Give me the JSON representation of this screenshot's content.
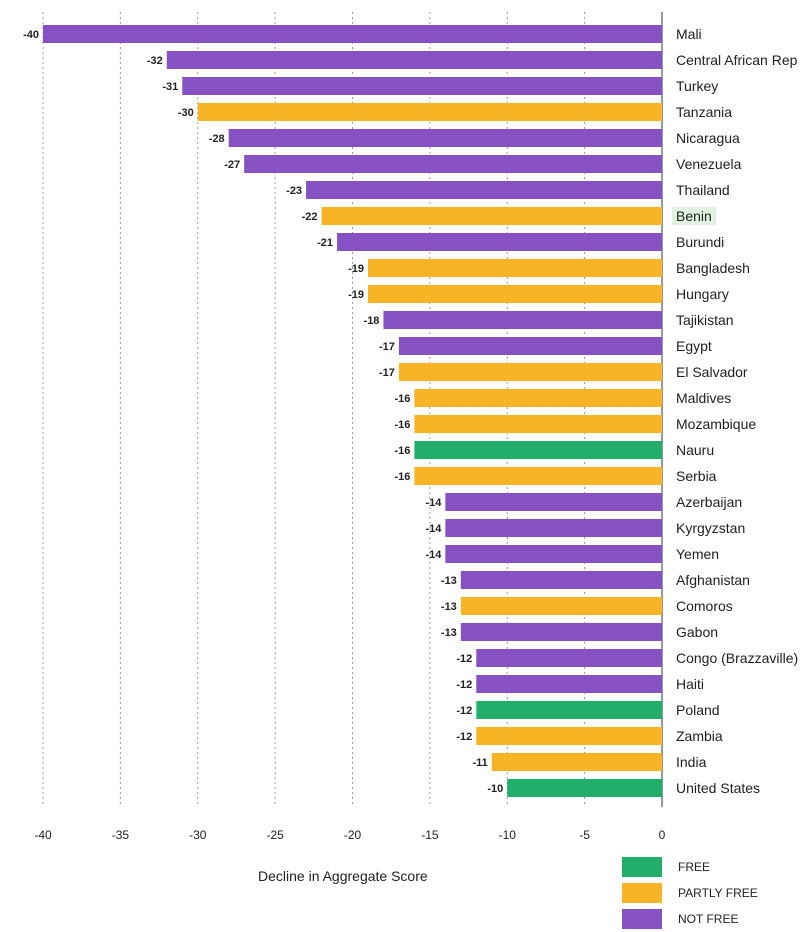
{
  "chart_data": {
    "type": "bar",
    "orientation": "horizontal",
    "xlabel": "Decline in Aggregate Score",
    "xlim": [
      -40,
      0
    ],
    "xticks": [
      -40,
      -35,
      -30,
      -25,
      -20,
      -15,
      -10,
      -5,
      0
    ],
    "grid": true,
    "legend_position": "bottom-right",
    "colors": {
      "FREE": "#22ae6a",
      "PARTLY FREE": "#f7b426",
      "NOT FREE": "#8651c3"
    },
    "legend": [
      {
        "label": "FREE",
        "status": "FREE"
      },
      {
        "label": "PARTLY FREE",
        "status": "PARTLY FREE"
      },
      {
        "label": "NOT FREE",
        "status": "NOT FREE"
      }
    ],
    "categories": [
      "Mali",
      "Central African Rep",
      "Turkey",
      "Tanzania",
      "Nicaragua",
      "Venezuela",
      "Thailand",
      "Benin",
      "Burundi",
      "Bangladesh",
      "Hungary",
      "Tajikistan",
      "Egypt",
      "El Salvador",
      "Maldives",
      "Mozambique",
      "Nauru",
      "Serbia",
      "Azerbaijan",
      "Kyrgyzstan",
      "Yemen",
      "Afghanistan",
      "Comoros",
      "Gabon",
      "Congo (Brazzaville)",
      "Haiti",
      "Poland",
      "Zambia",
      "India",
      "United States"
    ],
    "values": [
      -40,
      -32,
      -31,
      -30,
      -28,
      -27,
      -23,
      -22,
      -21,
      -19,
      -19,
      -18,
      -17,
      -17,
      -16,
      -16,
      -16,
      -16,
      -14,
      -14,
      -14,
      -13,
      -13,
      -13,
      -12,
      -12,
      -12,
      -12,
      -11,
      -10
    ],
    "value_labels": [
      "-40",
      "-32",
      "-31",
      "-30",
      "-28",
      "-27",
      "-23",
      "-22",
      "-21",
      "-19",
      "-19",
      "-18",
      "-17",
      "-17",
      "-16",
      "-16",
      "-16",
      "-16",
      "-14",
      "-14",
      "-14",
      "-13",
      "-13",
      "-13",
      "-12",
      "-12",
      "-12",
      "-12",
      "-11",
      "-10"
    ],
    "status": [
      "NOT FREE",
      "NOT FREE",
      "NOT FREE",
      "PARTLY FREE",
      "NOT FREE",
      "NOT FREE",
      "NOT FREE",
      "PARTLY FREE",
      "NOT FREE",
      "PARTLY FREE",
      "PARTLY FREE",
      "NOT FREE",
      "NOT FREE",
      "PARTLY FREE",
      "PARTLY FREE",
      "PARTLY FREE",
      "FREE",
      "PARTLY FREE",
      "NOT FREE",
      "NOT FREE",
      "NOT FREE",
      "NOT FREE",
      "PARTLY FREE",
      "NOT FREE",
      "NOT FREE",
      "NOT FREE",
      "FREE",
      "PARTLY FREE",
      "PARTLY FREE",
      "FREE"
    ],
    "highlighted_category": "Benin"
  }
}
